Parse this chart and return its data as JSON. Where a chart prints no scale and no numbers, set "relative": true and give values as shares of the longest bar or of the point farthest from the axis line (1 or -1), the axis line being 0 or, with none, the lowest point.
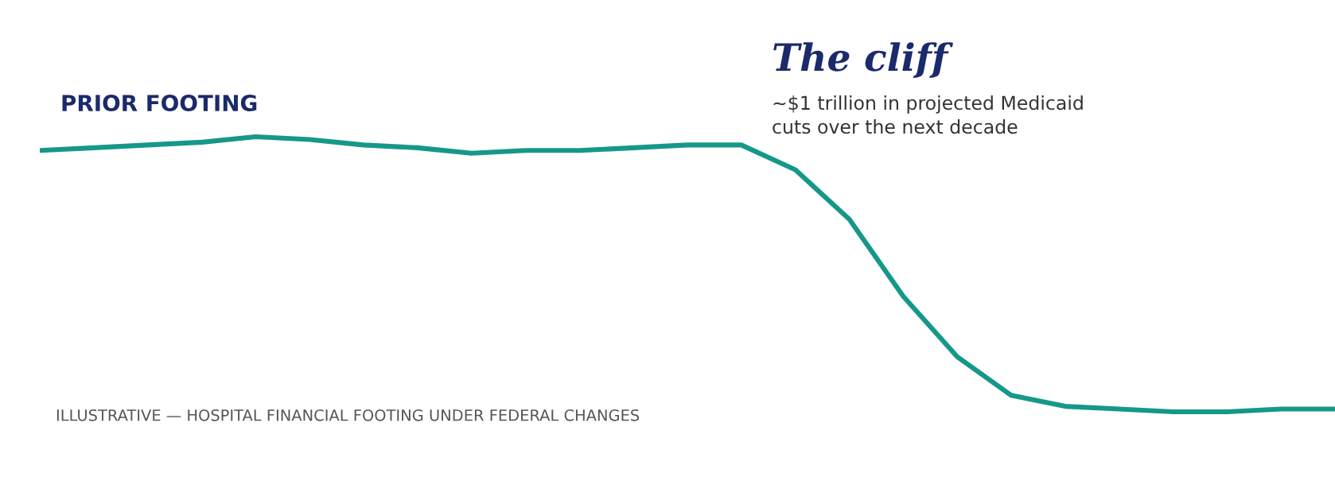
{
  "chart_data": {
    "type": "line",
    "relative": true,
    "categories": [
      null,
      null,
      null,
      null,
      null,
      null,
      null,
      null,
      null,
      null,
      null,
      null,
      null,
      null,
      null,
      null,
      null,
      null,
      null,
      null,
      null,
      null,
      null,
      null,
      null
    ],
    "series": [
      {
        "color": "#15988a",
        "values": [
          0.95,
          0.96,
          0.97,
          0.98,
          1,
          0.99,
          0.97,
          0.96,
          0.94,
          0.95,
          0.95,
          0.96,
          0.97,
          0.97,
          0.88,
          0.7,
          0.42,
          0.2,
          0.06,
          0.02,
          0.01,
          0,
          0,
          0.01,
          0.01
        ]
      }
    ],
    "annotations": [
      "PRIOR FOOTING",
      "The cliff",
      "~$1 trillion in projected Medicaid\ncuts over the next decade",
      "ILLUSTRATIVE — HOSPITAL FINANCIAL FOOTING UNDER FEDERAL CHANGES"
    ],
    "grid": false,
    "legend": false
  }
}
